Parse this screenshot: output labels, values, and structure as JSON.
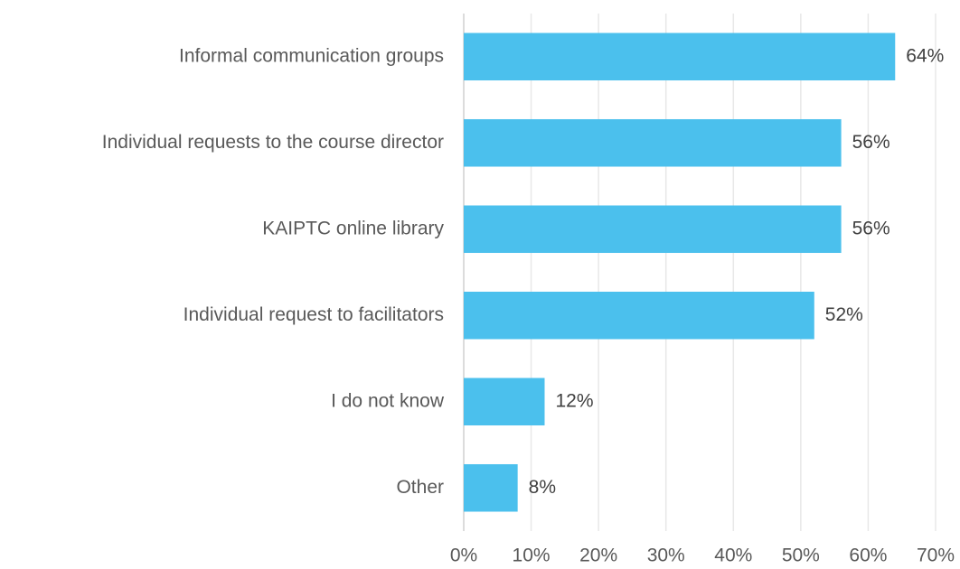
{
  "chart_data": {
    "type": "bar",
    "orientation": "horizontal",
    "categories": [
      "Informal communication groups",
      "Individual requests to the course director",
      "KAIPTC online library",
      "Individual request to facilitators",
      "I do not know",
      "Other"
    ],
    "values": [
      64,
      56,
      56,
      52,
      12,
      8
    ],
    "value_labels": [
      "64%",
      "56%",
      "56%",
      "52%",
      "12%",
      "8%"
    ],
    "color": "#4bc0ed",
    "xlim": [
      0,
      70
    ],
    "xticks": [
      {
        "value": 0,
        "label": "0%"
      },
      {
        "value": 10,
        "label": "10%"
      },
      {
        "value": 20,
        "label": "20%"
      },
      {
        "value": 30,
        "label": "30%"
      },
      {
        "value": 40,
        "label": "40%"
      },
      {
        "value": 50,
        "label": "50%"
      },
      {
        "value": 60,
        "label": "60%"
      },
      {
        "value": 70,
        "label": "70%"
      }
    ],
    "grid": true
  }
}
